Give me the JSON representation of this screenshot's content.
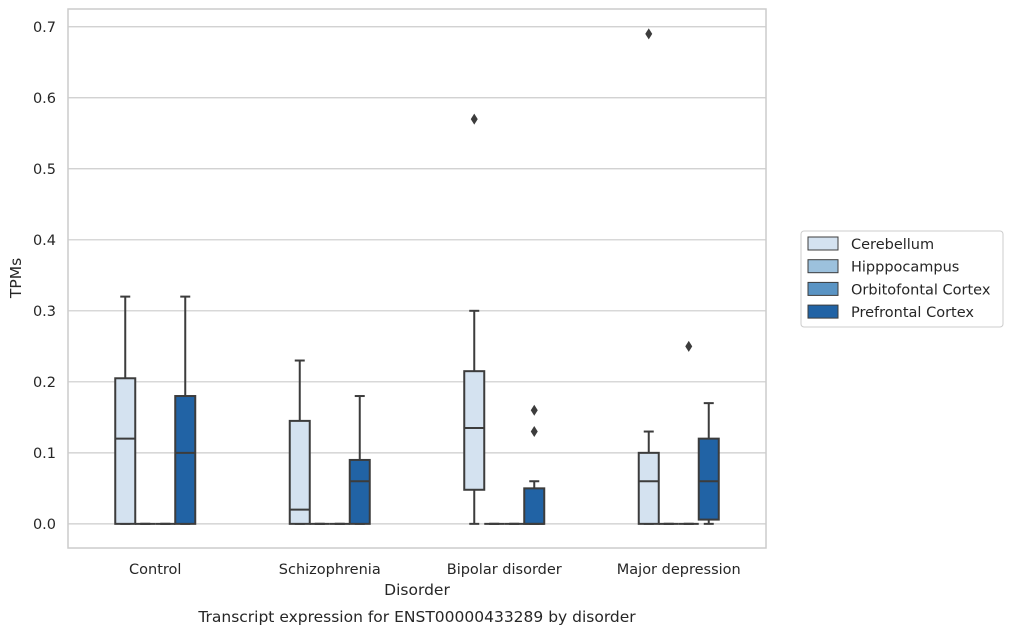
{
  "chart_data": {
    "type": "box",
    "title": "Transcript expression for ENST00000433289 by disorder",
    "xlabel": "Disorder",
    "ylabel": "TPMs",
    "categories": [
      "Control",
      "Schizophrenia",
      "Bipolar disorder",
      "Major depression"
    ],
    "y_ticks": [
      "0.0",
      "0.1",
      "0.2",
      "0.3",
      "0.4",
      "0.5",
      "0.6",
      "0.7"
    ],
    "ylim": [
      -0.034,
      0.725
    ],
    "grid": "horizontal",
    "legend_position": "right",
    "series": [
      {
        "name": "Cerebellum",
        "color": "#d4e2f0",
        "boxes": [
          {
            "q1": 0.0,
            "median": 0.12,
            "q3": 0.205,
            "whisker_low": 0.0,
            "whisker_high": 0.32,
            "outliers": []
          },
          {
            "q1": 0.0,
            "median": 0.02,
            "q3": 0.145,
            "whisker_low": 0.0,
            "whisker_high": 0.23,
            "outliers": []
          },
          {
            "q1": 0.048,
            "median": 0.135,
            "q3": 0.215,
            "whisker_low": 0.0,
            "whisker_high": 0.3,
            "outliers": [
              0.57
            ]
          },
          {
            "q1": 0.0,
            "median": 0.06,
            "q3": 0.1,
            "whisker_low": 0.0,
            "whisker_high": 0.13,
            "outliers": [
              0.69
            ]
          }
        ]
      },
      {
        "name": "Hipppocampus",
        "color": "#9cc1dd",
        "boxes": [
          {
            "q1": 0.0,
            "median": 0.0,
            "q3": 0.0,
            "whisker_low": 0.0,
            "whisker_high": 0.0,
            "outliers": []
          },
          {
            "q1": 0.0,
            "median": 0.0,
            "q3": 0.0,
            "whisker_low": 0.0,
            "whisker_high": 0.0,
            "outliers": []
          },
          {
            "q1": 0.0,
            "median": 0.0,
            "q3": 0.0,
            "whisker_low": 0.0,
            "whisker_high": 0.0,
            "outliers": []
          },
          {
            "q1": 0.0,
            "median": 0.0,
            "q3": 0.0,
            "whisker_low": 0.0,
            "whisker_high": 0.0,
            "outliers": []
          }
        ]
      },
      {
        "name": "Orbitofontal Cortex",
        "color": "#5a94c4",
        "boxes": [
          {
            "q1": 0.0,
            "median": 0.0,
            "q3": 0.0,
            "whisker_low": 0.0,
            "whisker_high": 0.0,
            "outliers": []
          },
          {
            "q1": 0.0,
            "median": 0.0,
            "q3": 0.0,
            "whisker_low": 0.0,
            "whisker_high": 0.0,
            "outliers": []
          },
          {
            "q1": 0.0,
            "median": 0.0,
            "q3": 0.0,
            "whisker_low": 0.0,
            "whisker_high": 0.0,
            "outliers": []
          },
          {
            "q1": 0.0,
            "median": 0.0,
            "q3": 0.0,
            "whisker_low": 0.0,
            "whisker_high": 0.0,
            "outliers": [
              0.25
            ]
          }
        ]
      },
      {
        "name": "Prefrontal Cortex",
        "color": "#2163a5",
        "boxes": [
          {
            "q1": 0.0,
            "median": 0.1,
            "q3": 0.18,
            "whisker_low": 0.0,
            "whisker_high": 0.32,
            "outliers": []
          },
          {
            "q1": 0.0,
            "median": 0.06,
            "q3": 0.09,
            "whisker_low": 0.0,
            "whisker_high": 0.18,
            "outliers": []
          },
          {
            "q1": 0.0,
            "median": 0.0,
            "q3": 0.05,
            "whisker_low": 0.0,
            "whisker_high": 0.06,
            "outliers": [
              0.13,
              0.16
            ]
          },
          {
            "q1": 0.006,
            "median": 0.06,
            "q3": 0.12,
            "whisker_low": 0.0,
            "whisker_high": 0.17,
            "outliers": []
          }
        ]
      }
    ]
  }
}
